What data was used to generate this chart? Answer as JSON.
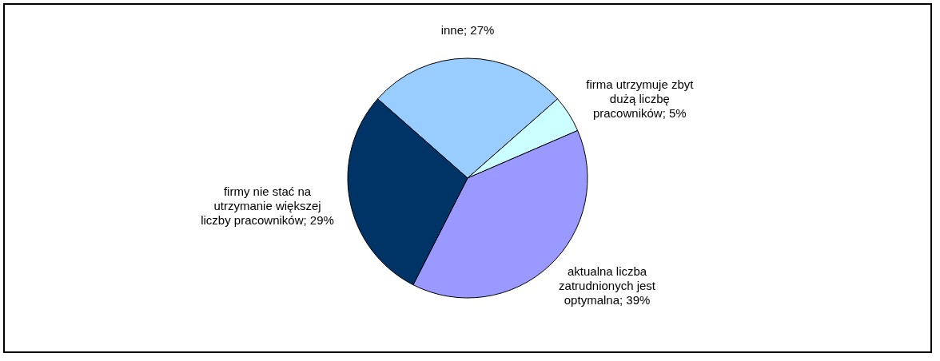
{
  "chart_data": {
    "type": "pie",
    "categories": [
      "inne",
      "firma utrzymuje zbyt dużą liczbę pracowników",
      "aktualna liczba zatrudnionych jest optymalna",
      "firmy nie stać na utrzymanie większej liczby pracowników"
    ],
    "values": [
      27,
      5,
      39,
      29
    ],
    "colors": [
      "#99ccff",
      "#ccffff",
      "#9999ff",
      "#003366"
    ],
    "value_labels": [
      "27%",
      "5%",
      "39%",
      "29%"
    ]
  }
}
